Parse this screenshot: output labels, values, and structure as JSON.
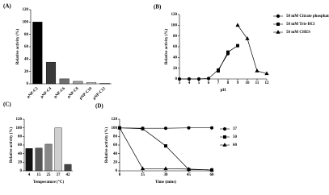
{
  "chart_data": [
    {
      "type": "bar",
      "label": "(A)",
      "y_label": "Relative activity (%)",
      "categories": [
        "ρNP-C2",
        "ρNP-C4",
        "ρNP-C6",
        "ρNP-C8",
        "ρNP-C10",
        "ρNP-C12"
      ],
      "values": [
        100,
        35,
        8,
        4,
        2,
        1
      ],
      "colors": [
        "#000000",
        "#3a3a3a",
        "#6e6e6e",
        "#a0a0a0",
        "#c8c8c8",
        "#e0e0e0"
      ],
      "ylim": [
        0,
        120
      ],
      "yticks": [
        0,
        20,
        40,
        60,
        80,
        100,
        120
      ]
    },
    {
      "type": "line",
      "label": "(B)",
      "y_label": "Relative activity (%)",
      "x_label": "pH",
      "x": [
        3,
        4,
        5,
        6,
        7,
        8,
        9,
        10,
        11,
        12
      ],
      "series": [
        {
          "name": "50 mM Citrate phosphate",
          "color": "#000000",
          "marker": "circle",
          "values": [
            0,
            0,
            0,
            1,
            17,
            47,
            null,
            null,
            null,
            null
          ]
        },
        {
          "name": "50 mM Tris-HCl",
          "color": "#000000",
          "marker": "square",
          "values": [
            null,
            null,
            null,
            null,
            15,
            50,
            62,
            null,
            null,
            null
          ]
        },
        {
          "name": "50 mM CHES",
          "color": "#000000",
          "marker": "triangle",
          "values": [
            null,
            null,
            null,
            null,
            null,
            null,
            100,
            75,
            15,
            10
          ]
        }
      ],
      "xlim": [
        3,
        12
      ],
      "xticks": [
        3,
        4,
        5,
        6,
        7,
        8,
        9,
        10,
        11,
        12
      ],
      "ylim": [
        0,
        120
      ],
      "yticks": [
        0,
        20,
        40,
        60,
        80,
        100,
        120
      ]
    },
    {
      "type": "bar",
      "label": "(C)",
      "y_label": "Relative activity (%)",
      "x_label": "Temperature (°C)",
      "categories": [
        "4",
        "15",
        "25",
        "37",
        "42"
      ],
      "values": [
        52,
        53,
        62,
        100,
        15
      ],
      "colors": [
        "#111111",
        "#555555",
        "#888888",
        "#cfcfcf",
        "#444444"
      ],
      "ylim": [
        0,
        120
      ],
      "yticks": [
        0,
        20,
        40,
        60,
        80,
        100,
        120
      ]
    },
    {
      "type": "line",
      "label": "(D)",
      "y_label": "Relative activity (%)",
      "x_label": "Time (mins)",
      "x": [
        0,
        15,
        30,
        45,
        60
      ],
      "series": [
        {
          "name": "37",
          "color": "#000000",
          "marker": "circle",
          "values": [
            100,
            99,
            99,
            100,
            100
          ]
        },
        {
          "name": "50",
          "color": "#000000",
          "marker": "square",
          "values": [
            100,
            98,
            58,
            3,
            2
          ]
        },
        {
          "name": "60",
          "color": "#000000",
          "marker": "triangle",
          "values": [
            100,
            5,
            5,
            4,
            2
          ]
        }
      ],
      "xlim": [
        0,
        60
      ],
      "xticks": [
        0,
        15,
        30,
        45,
        60
      ],
      "ylim": [
        0,
        120
      ],
      "yticks": [
        0,
        20,
        40,
        60,
        80,
        100,
        120
      ]
    }
  ]
}
